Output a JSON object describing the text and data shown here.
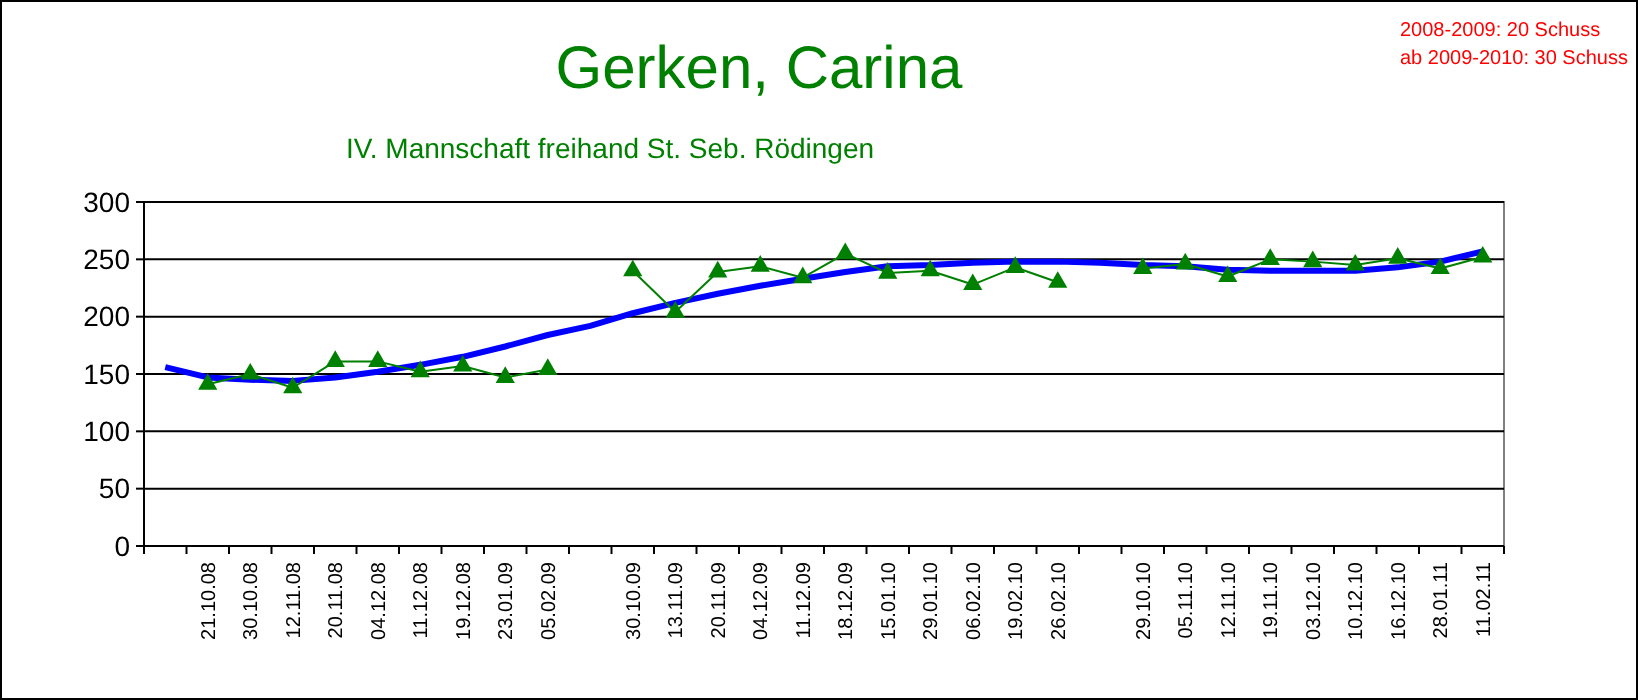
{
  "chart_data": {
    "type": "line",
    "title": "Gerken, Carina",
    "subtitle": "IV. Mannschaft freihand St. Seb. Rödingen",
    "annotations": [
      "2008-2009: 20 Schuss",
      "ab 2009-2010: 30 Schuss"
    ],
    "categories": [
      null,
      "21.10.08",
      "30.10.08",
      "12.11.08",
      "20.11.08",
      "04.12.08",
      "11.12.08",
      "19.12.08",
      "23.01.09",
      "05.02.09",
      null,
      "30.10.09",
      "13.11.09",
      "20.11.09",
      "04.12.09",
      "11.12.09",
      "18.12.09",
      "15.01.10",
      "29.01.10",
      "06.02.10",
      "19.02.10",
      "26.02.10",
      null,
      "29.10.10",
      "05.11.10",
      "12.11.10",
      "19.11.10",
      "03.12.10",
      "10.12.10",
      "16.12.10",
      "28.01.11",
      "11.02.11"
    ],
    "series": [
      {
        "color": "#008000",
        "marker": "triangle",
        "values": [
          null,
          141,
          150,
          138,
          161,
          161,
          152,
          157,
          147,
          154,
          null,
          240,
          204,
          239,
          244,
          234,
          255,
          238,
          240,
          228,
          243,
          230,
          null,
          242,
          246,
          235,
          250,
          248,
          245,
          251,
          242,
          252
        ]
      },
      {
        "color": "#0000ff",
        "marker": "none",
        "values": [
          156,
          147,
          145,
          144,
          147,
          152,
          158,
          165,
          174,
          184,
          192,
          203,
          212,
          220,
          227,
          233,
          239,
          244,
          245,
          247,
          248,
          248,
          247,
          245,
          244,
          241,
          240,
          240,
          240,
          243,
          248,
          257
        ]
      }
    ],
    "ylim": [
      0,
      300
    ],
    "yticks": [
      0,
      50,
      100,
      150,
      200,
      250,
      300
    ],
    "grid": "y"
  }
}
